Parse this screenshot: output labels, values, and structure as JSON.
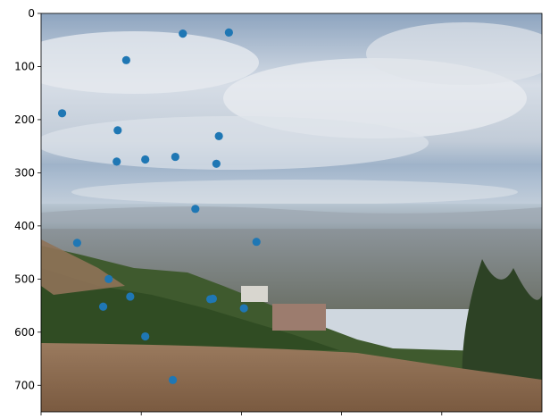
{
  "chart_data": {
    "type": "scatter",
    "title": "",
    "xlabel": "",
    "ylabel": "",
    "xlim": [
      0,
      1000
    ],
    "ylim": [
      750,
      0
    ],
    "y_axis_inverted": true,
    "background": "landscape photograph: cloudy sky above a hazy city and bay, green hillside and brown dirt path in the foreground",
    "xticks": [
      0,
      200,
      400,
      600,
      800
    ],
    "yticks": [
      0,
      100,
      200,
      300,
      400,
      500,
      600,
      700
    ],
    "grid": false,
    "marker_color": "#1f77b4",
    "points": [
      {
        "x": 283,
        "y": 38
      },
      {
        "x": 375,
        "y": 36
      },
      {
        "x": 170,
        "y": 88
      },
      {
        "x": 42,
        "y": 188
      },
      {
        "x": 153,
        "y": 220
      },
      {
        "x": 355,
        "y": 231
      },
      {
        "x": 268,
        "y": 270
      },
      {
        "x": 208,
        "y": 275
      },
      {
        "x": 151,
        "y": 279
      },
      {
        "x": 350,
        "y": 283
      },
      {
        "x": 308,
        "y": 368
      },
      {
        "x": 72,
        "y": 432
      },
      {
        "x": 430,
        "y": 430
      },
      {
        "x": 135,
        "y": 500
      },
      {
        "x": 178,
        "y": 533
      },
      {
        "x": 338,
        "y": 538
      },
      {
        "x": 343,
        "y": 537
      },
      {
        "x": 124,
        "y": 552
      },
      {
        "x": 405,
        "y": 555
      },
      {
        "x": 208,
        "y": 608
      },
      {
        "x": 263,
        "y": 690
      }
    ]
  }
}
